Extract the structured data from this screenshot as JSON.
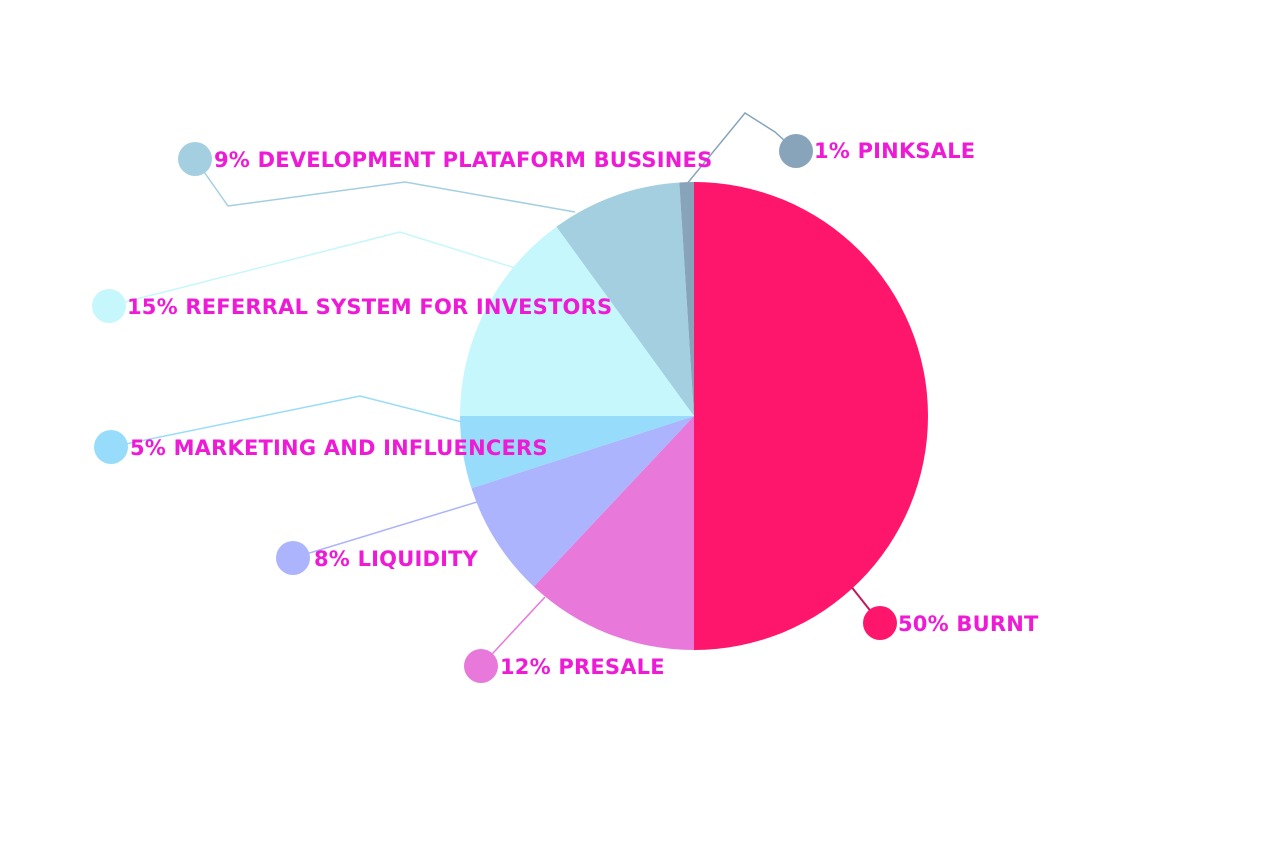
{
  "chart_data": {
    "type": "pie",
    "title": "",
    "start_angle_deg": 0,
    "direction": "clockwise",
    "label_color": "#ee1ad6",
    "slices": [
      {
        "label": "50% BURNT",
        "value": 50,
        "color": "#fe166c",
        "dot_color": "#fe166c"
      },
      {
        "label": "12% PRESALE",
        "value": 12,
        "color": "#e878da",
        "dot_color": "#e878da"
      },
      {
        "label": "8% LIQUIDITY",
        "value": 8,
        "color": "#acb4fd",
        "dot_color": "#acb4fd"
      },
      {
        "label": "5% MARKETING AND INFLUENCERS",
        "value": 5,
        "color": "#97dcfb",
        "dot_color": "#97dcfb"
      },
      {
        "label": "15% REFERRAL SYSTEM FOR INVESTORS",
        "value": 15,
        "color": "#c6f7fc",
        "dot_color": "#c6f7fc"
      },
      {
        "label": "9% DEVELOPMENT PLATAFORM BUSSINES",
        "value": 9,
        "color": "#a3cfe1",
        "dot_color": "#a3cfe1"
      },
      {
        "label": "1% PINKSALE",
        "value": 1,
        "color": "#87a4ba",
        "dot_color": "#87a4ba"
      }
    ]
  }
}
